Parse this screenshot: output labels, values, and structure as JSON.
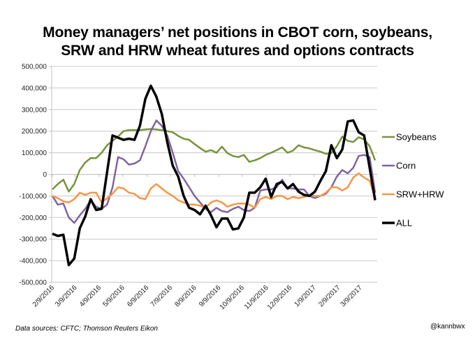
{
  "chart_data": {
    "type": "line",
    "title": "Money managers’ net positions in CBOT corn, soybeans, SRW and HRW wheat futures and options contracts",
    "title_lines": [
      "Money managers’ net positions in CBOT corn, soybeans,",
      "SRW and HRW wheat futures and options contracts"
    ],
    "xlabel": "",
    "ylabel": "",
    "ylim": [
      -500000,
      500000
    ],
    "y_ticks": [
      500000,
      400000,
      300000,
      200000,
      100000,
      0,
      -100000,
      -200000,
      -300000,
      -400000,
      -500000
    ],
    "y_tick_labels": [
      "500,000",
      "400,000",
      "300,000",
      "200,000",
      "100,000",
      "0",
      "-100,000",
      "-200,000",
      "-300,000",
      "-400,000",
      "-500,000"
    ],
    "x_tick_labels": [
      "2/9/2016",
      "3/9/2016",
      "4/9/2016",
      "5/9/2016",
      "6/9/2016",
      "7/9/2016",
      "8/9/2016",
      "9/9/2016",
      "10/9/2016",
      "11/9/2016",
      "12/9/2016",
      "1/9/2017",
      "2/9/2017",
      "3/9/2017"
    ],
    "x_start": "2/9/2016",
    "x_frequency": "weekly",
    "grid": "horizontal",
    "legend_position": "right",
    "series": [
      {
        "name": "Soybeans",
        "color": "#77933C",
        "values": [
          -70,
          -45,
          -25,
          -80,
          -45,
          20,
          55,
          75,
          75,
          100,
          135,
          155,
          175,
          200,
          205,
          205,
          205,
          208,
          210,
          208,
          205,
          200,
          195,
          178,
          165,
          160,
          140,
          122,
          105,
          112,
          100,
          128,
          98,
          85,
          80,
          90,
          58,
          65,
          75,
          90,
          100,
          112,
          125,
          100,
          110,
          135,
          125,
          120,
          112,
          105,
          95,
          98,
          130,
          175,
          155,
          150,
          172,
          162,
          130,
          65
        ]
      },
      {
        "name": "Corn",
        "color": "#8064A2",
        "values": [
          -100,
          -140,
          -135,
          -200,
          -225,
          -190,
          -160,
          -120,
          -150,
          -160,
          -140,
          -60,
          80,
          70,
          45,
          50,
          65,
          130,
          200,
          250,
          225,
          180,
          100,
          15,
          -20,
          -60,
          -100,
          -130,
          -160,
          -175,
          -155,
          -170,
          -175,
          -160,
          -150,
          -165,
          -170,
          -155,
          -75,
          -70,
          -70,
          -60,
          -25,
          -65,
          -65,
          -70,
          -70,
          -100,
          -110,
          -100,
          -90,
          -60,
          -10,
          20,
          5,
          30,
          85,
          90,
          80,
          -85
        ]
      },
      {
        "name": "SRW+HRW",
        "color": "#F79646",
        "values": [
          -100,
          -110,
          -125,
          -130,
          -115,
          -85,
          -95,
          -85,
          -85,
          -130,
          -110,
          -90,
          -60,
          -65,
          -85,
          -90,
          -110,
          -115,
          -65,
          -45,
          -65,
          -85,
          -100,
          -120,
          -130,
          -140,
          -140,
          -145,
          -155,
          -130,
          -120,
          -130,
          -150,
          -140,
          -135,
          -135,
          -140,
          -155,
          -115,
          -105,
          -115,
          -100,
          -100,
          -115,
          -105,
          -110,
          -105,
          -95,
          -100,
          -100,
          -85,
          -60,
          -60,
          -75,
          -60,
          -15,
          5,
          -15,
          -30,
          -110
        ]
      },
      {
        "name": "ALL",
        "color": "#000000",
        "values": [
          -275,
          -285,
          -280,
          -420,
          -390,
          -250,
          -195,
          -115,
          -165,
          -160,
          10,
          180,
          170,
          160,
          165,
          160,
          225,
          350,
          410,
          360,
          280,
          150,
          40,
          -10,
          -100,
          -155,
          -165,
          -185,
          -145,
          -190,
          -245,
          -205,
          -205,
          -255,
          -250,
          -200,
          -85,
          -85,
          -60,
          -20,
          -105,
          -45,
          -35,
          -65,
          -45,
          -80,
          -95,
          -100,
          -80,
          -30,
          15,
          135,
          75,
          115,
          245,
          250,
          195,
          180,
          30,
          -120
        ]
      }
    ]
  },
  "footer": {
    "source": "Data sources: CFTC; Thomson Reuters Eikon",
    "handle": "@kannbwx"
  }
}
